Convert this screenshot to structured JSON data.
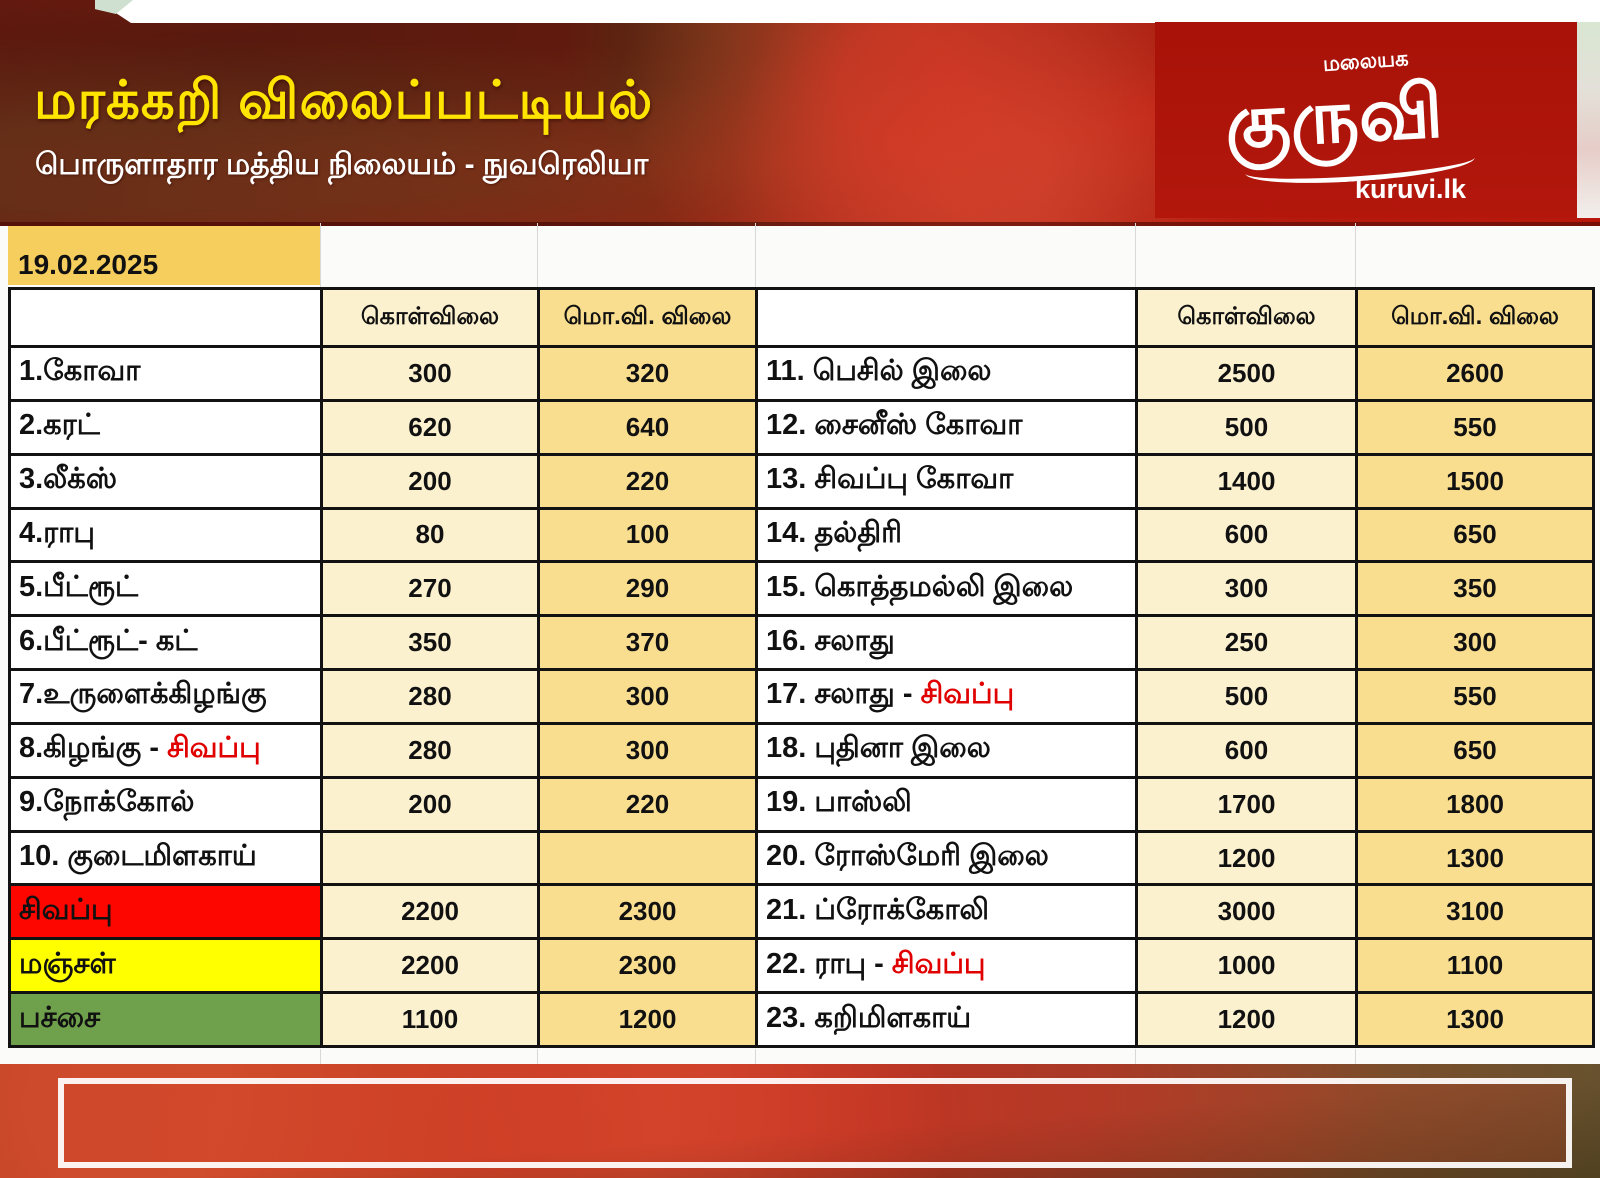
{
  "header": {
    "title": "மரக்கறி விலைப்பட்டியல்",
    "subtitle": "பொருளாதார மத்திய நிலையம் - நுவரெலியா",
    "logo": {
      "script_top": "மலையக",
      "script_main": "குருவி",
      "site": "kuruvi.lk"
    }
  },
  "date": "19.02.2025",
  "table": {
    "price_col_headers": [
      "கொள்விலை",
      "மொ.வி. விலை"
    ],
    "rows": [
      {
        "left": {
          "label": "1.கோவா",
          "buy": "300",
          "sell": "320"
        },
        "right": {
          "label": "11. பெசில் இலை",
          "buy": "2500",
          "sell": "2600"
        }
      },
      {
        "left": {
          "label": "2.கரட்",
          "buy": "620",
          "sell": "640"
        },
        "right": {
          "label": "12. சைனீஸ் கோவா",
          "buy": "500",
          "sell": "550"
        }
      },
      {
        "left": {
          "label": "3.லீக்ஸ்",
          "buy": "200",
          "sell": "220"
        },
        "right": {
          "label": "13. சிவப்பு கோவா",
          "buy": "1400",
          "sell": "1500"
        }
      },
      {
        "left": {
          "label": "4.ராபு",
          "buy": "80",
          "sell": "100"
        },
        "right": {
          "label": "14. தல்திரி",
          "buy": "600",
          "sell": "650"
        }
      },
      {
        "left": {
          "label": "5.பீட்ரூட்",
          "buy": "270",
          "sell": "290"
        },
        "right": {
          "label": "15. கொத்தமல்லி இலை",
          "buy": "300",
          "sell": "350"
        }
      },
      {
        "left": {
          "label": "6.பீட்ரூட்- கட்",
          "buy": "350",
          "sell": "370"
        },
        "right": {
          "label": "16. சலாது",
          "buy": "250",
          "sell": "300"
        }
      },
      {
        "left": {
          "label": "7.உருளைக்கிழங்கு",
          "buy": "280",
          "sell": "300"
        },
        "right": {
          "label": "17. சலாது - ",
          "red_suffix": "சிவப்பு",
          "buy": "500",
          "sell": "550"
        }
      },
      {
        "left": {
          "label": "8.கிழங்கு - ",
          "red_suffix": "சிவப்பு",
          "buy": "280",
          "sell": "300"
        },
        "right": {
          "label": "18. புதினா இலை",
          "buy": "600",
          "sell": "650"
        }
      },
      {
        "left": {
          "label": "9.நோக்கோல்",
          "buy": "200",
          "sell": "220"
        },
        "right": {
          "label": "19. பாஸ்லி",
          "buy": "1700",
          "sell": "1800"
        }
      },
      {
        "left": {
          "label": "10. குடைமிளகாய்",
          "buy": "",
          "sell": ""
        },
        "right": {
          "label": "20. ரோஸ்மேரி இலை",
          "buy": "1200",
          "sell": "1300"
        }
      },
      {
        "left": {
          "label": "சிவப்பு",
          "bg": "red",
          "buy": "2200",
          "sell": "2300"
        },
        "right": {
          "label": "21. ப்ரோக்கோலி",
          "buy": "3000",
          "sell": "3100"
        }
      },
      {
        "left": {
          "label": "மஞ்சள்",
          "bg": "yellow",
          "buy": "2200",
          "sell": "2300"
        },
        "right": {
          "label": "22. ராபு - ",
          "red_suffix": "சிவப்பு",
          "buy": "1000",
          "sell": "1100"
        }
      },
      {
        "left": {
          "label": "பச்சை",
          "bg": "green",
          "buy": "1100",
          "sell": "1200"
        },
        "right": {
          "label": "23. கறிமிளகாய்",
          "buy": "1200",
          "sell": "1300"
        }
      }
    ]
  },
  "colors": {
    "hero_red": "#a81208",
    "title_yellow": "#ffe400",
    "date_gold": "#f6ce5e",
    "cell_cream": "#fcf1cf",
    "cell_gold": "#f9de90",
    "row_red": "#fe0600",
    "row_yellow": "#ffff00",
    "row_green": "#6fa14d",
    "red_text": "#e00000"
  }
}
